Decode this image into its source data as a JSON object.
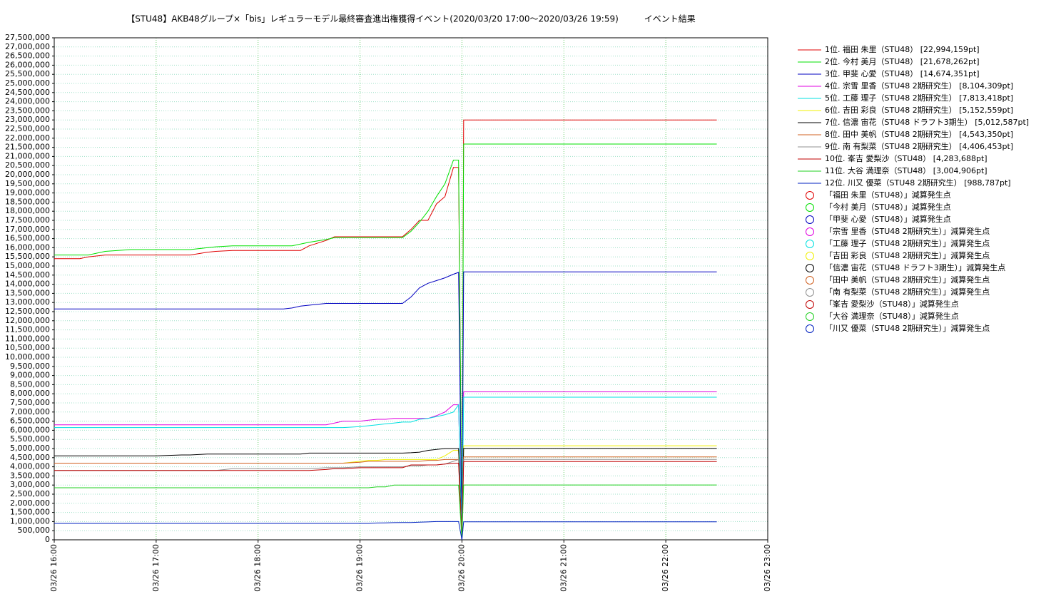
{
  "chart_data": {
    "type": "line",
    "title": "【STU48】AKB48グループ×「bis」レギュラーモデル最終審査進出権獲得イベント(2020/03/20 17:00〜2020/03/26 19:59)　　　イベント結果",
    "grid": true,
    "legend": "right",
    "x": [
      "03/26 16:00",
      "03/26 16:15",
      "03/26 16:20",
      "03/26 16:30",
      "03/26 16:45",
      "03/26 17:00",
      "03/26 17:15",
      "03/26 17:20",
      "03/26 17:30",
      "03/26 17:35",
      "03/26 17:45",
      "03/26 18:00",
      "03/26 18:15",
      "03/26 18:20",
      "03/26 18:25",
      "03/26 18:30",
      "03/26 18:40",
      "03/26 18:45",
      "03/26 18:50",
      "03/26 19:00",
      "03/26 19:05",
      "03/26 19:10",
      "03/26 19:15",
      "03/26 19:20",
      "03/26 19:25",
      "03/26 19:30",
      "03/26 19:35",
      "03/26 19:40",
      "03/26 19:45",
      "03/26 19:50",
      "03/26 19:55",
      "03/26 19:58",
      "03/26 20:00",
      "03/26 20:01",
      "03/26 22:30"
    ],
    "xlim": [
      "03/26 16:00",
      "03/26 23:00"
    ],
    "xticks": [
      "03/26 16:00",
      "03/26 17:00",
      "03/26 18:00",
      "03/26 19:00",
      "03/26 20:00",
      "03/26 21:00",
      "03/26 22:00",
      "03/26 23:00"
    ],
    "ylim": [
      0,
      27500000
    ],
    "yticks": [
      0,
      {
        "value": 500000,
        "label": "500,000"
      },
      {
        "value": 1000000,
        "label": "1,000,000"
      },
      {
        "value": 1500000,
        "label": "1,500,000"
      },
      {
        "value": 2000000,
        "label": "2,000,000"
      },
      {
        "value": 2500000,
        "label": "2,500,000"
      },
      {
        "value": 3000000,
        "label": "3,000,000"
      },
      {
        "value": 3500000,
        "label": "3,500,000"
      },
      {
        "value": 4000000,
        "label": "4,000,000"
      },
      {
        "value": 4500000,
        "label": "4,500,000"
      },
      {
        "value": 5000000,
        "label": "5,000,000"
      },
      {
        "value": 5500000,
        "label": "5,500,000"
      },
      {
        "value": 6000000,
        "label": "6,000,000"
      },
      {
        "value": 6500000,
        "label": "6,500,000"
      },
      {
        "value": 7000000,
        "label": "7,000,000"
      },
      {
        "value": 7500000,
        "label": "7,500,000"
      },
      {
        "value": 8000000,
        "label": "8,000,000"
      },
      {
        "value": 8500000,
        "label": "8,500,000"
      },
      {
        "value": 9000000,
        "label": "9,000,000"
      },
      {
        "value": 9500000,
        "label": "9,500,000"
      },
      {
        "value": 10000000,
        "label": "10,000,000"
      },
      {
        "value": 10500000,
        "label": "10,500,000"
      },
      {
        "value": 11000000,
        "label": "11,000,000"
      },
      {
        "value": 11500000,
        "label": "11,500,000"
      },
      {
        "value": 12000000,
        "label": "12,000,000"
      },
      {
        "value": 12500000,
        "label": "12,500,000"
      },
      {
        "value": 13000000,
        "label": "13,000,000"
      },
      {
        "value": 13500000,
        "label": "13,500,000"
      },
      {
        "value": 14000000,
        "label": "14,000,000"
      },
      {
        "value": 14500000,
        "label": "14,500,000"
      },
      {
        "value": 15000000,
        "label": "15,000,000"
      },
      {
        "value": 15500000,
        "label": "15,500,000"
      },
      {
        "value": 16000000,
        "label": "16,000,000"
      },
      {
        "value": 16500000,
        "label": "16,500,000"
      },
      {
        "value": 17000000,
        "label": "17,000,000"
      },
      {
        "value": 17500000,
        "label": "17,500,000"
      },
      {
        "value": 18000000,
        "label": "18,000,000"
      },
      {
        "value": 18500000,
        "label": "18,500,000"
      },
      {
        "value": 19000000,
        "label": "19,000,000"
      },
      {
        "value": 19500000,
        "label": "19,500,000"
      },
      {
        "value": 20000000,
        "label": "20,000,000"
      },
      {
        "value": 20500000,
        "label": "20,500,000"
      },
      {
        "value": 21000000,
        "label": "21,000,000"
      },
      {
        "value": 21500000,
        "label": "21,500,000"
      },
      {
        "value": 22000000,
        "label": "22,000,000"
      },
      {
        "value": 22500000,
        "label": "22,500,000"
      },
      {
        "value": 23000000,
        "label": "23,000,000"
      },
      {
        "value": 23500000,
        "label": "23,500,000"
      },
      {
        "value": 24000000,
        "label": "24,000,000"
      },
      {
        "value": 24500000,
        "label": "24,500,000"
      },
      {
        "value": 25000000,
        "label": "25,000,000"
      },
      {
        "value": 25500000,
        "label": "25,500,000"
      },
      {
        "value": 26000000,
        "label": "26,000,000"
      },
      {
        "value": 26500000,
        "label": "26,500,000"
      },
      {
        "value": 27000000,
        "label": "27,000,000"
      },
      {
        "value": 27500000,
        "label": "27,500,000"
      }
    ],
    "series": [
      {
        "name": "1位. 福田 朱里（STU48） [22,994,159pt]",
        "color": "#e00000",
        "values": [
          15400000,
          15400000,
          15500000,
          15600000,
          15600000,
          15600000,
          15600000,
          15600000,
          15750000,
          15800000,
          15850000,
          15850000,
          15850000,
          15850000,
          15850000,
          16100000,
          16400000,
          16600000,
          16600000,
          16600000,
          16600000,
          16600000,
          16600000,
          16600000,
          16600000,
          17000000,
          17500000,
          17500000,
          18400000,
          18800000,
          20400000,
          20400000,
          0,
          22994159,
          22994159
        ]
      },
      {
        "name": "2位. 今村 美月（STU48） [21,678,262pt]",
        "color": "#00e000",
        "values": [
          15600000,
          15600000,
          15600000,
          15800000,
          15900000,
          15900000,
          15900000,
          15900000,
          16000000,
          16050000,
          16100000,
          16100000,
          16100000,
          16100000,
          16200000,
          16300000,
          16450000,
          16550000,
          16550000,
          16550000,
          16550000,
          16550000,
          16550000,
          16550000,
          16550000,
          16900000,
          17400000,
          18000000,
          18800000,
          19500000,
          20800000,
          20800000,
          0,
          21678262,
          21678262
        ]
      },
      {
        "name": "3位. 甲斐 心愛（STU48） [14,674,351pt]",
        "color": "#0000c0",
        "values": [
          12650000,
          12650000,
          12650000,
          12650000,
          12650000,
          12650000,
          12650000,
          12650000,
          12650000,
          12650000,
          12650000,
          12650000,
          12650000,
          12700000,
          12800000,
          12850000,
          12950000,
          12950000,
          12950000,
          12950000,
          12950000,
          12950000,
          12950000,
          12950000,
          12950000,
          13300000,
          13800000,
          14050000,
          14200000,
          14350000,
          14550000,
          14650000,
          0,
          14674351,
          14674351
        ]
      },
      {
        "name": "4位. 宗雪 里香（STU48 2期研究生） [8,104,309pt]",
        "color": "#e000e0",
        "values": [
          6300000,
          6300000,
          6300000,
          6300000,
          6300000,
          6300000,
          6300000,
          6300000,
          6300000,
          6300000,
          6300000,
          6300000,
          6300000,
          6300000,
          6300000,
          6300000,
          6300000,
          6400000,
          6500000,
          6500000,
          6550000,
          6600000,
          6600000,
          6650000,
          6650000,
          6650000,
          6650000,
          6650000,
          6800000,
          7000000,
          7400000,
          7400000,
          0,
          8104309,
          8104309
        ]
      },
      {
        "name": "5位. 工藤 理子（STU48 2期研究生） [7,813,418pt]",
        "color": "#00e0e0",
        "values": [
          6150000,
          6150000,
          6150000,
          6150000,
          6150000,
          6150000,
          6150000,
          6150000,
          6150000,
          6150000,
          6150000,
          6150000,
          6150000,
          6150000,
          6150000,
          6150000,
          6150000,
          6150000,
          6150000,
          6200000,
          6250000,
          6300000,
          6350000,
          6400000,
          6450000,
          6450000,
          6600000,
          6650000,
          6750000,
          6850000,
          7000000,
          7400000,
          0,
          7813418,
          7813418
        ]
      },
      {
        "name": "6位. 吉田 彩良（STU48 2期研究生） [5,152,559pt]",
        "color": "#f0f000",
        "values": [
          4200000,
          4200000,
          4200000,
          4200000,
          4200000,
          4200000,
          4200000,
          4200000,
          4200000,
          4200000,
          4200000,
          4200000,
          4200000,
          4200000,
          4200000,
          4200000,
          4200000,
          4200000,
          4200000,
          4300000,
          4350000,
          4350000,
          4400000,
          4400000,
          4400000,
          4400000,
          4400000,
          4400000,
          4400000,
          4600000,
          4900000,
          4900000,
          0,
          5152559,
          5152559
        ]
      },
      {
        "name": "7位. 信濃 宙花（STU48 ドラフト3期生） [5,012,587pt]",
        "color": "#000000",
        "values": [
          4600000,
          4600000,
          4600000,
          4600000,
          4600000,
          4600000,
          4650000,
          4650000,
          4700000,
          4700000,
          4700000,
          4700000,
          4700000,
          4700000,
          4700000,
          4750000,
          4750000,
          4750000,
          4750000,
          4750000,
          4750000,
          4750000,
          4750000,
          4750000,
          4750000,
          4770000,
          4800000,
          4900000,
          4950000,
          5000000,
          5000000,
          5000000,
          0,
          5012587,
          5012587
        ]
      },
      {
        "name": "8位. 田中 美帆（STU48 2期研究生） [4,543,350pt]",
        "color": "#d06020",
        "values": [
          4200000,
          4200000,
          4200000,
          4200000,
          4200000,
          4200000,
          4200000,
          4200000,
          4200000,
          4200000,
          4200000,
          4200000,
          4200000,
          4200000,
          4200000,
          4200000,
          4200000,
          4200000,
          4200000,
          4250000,
          4300000,
          4300000,
          4300000,
          4300000,
          4300000,
          4300000,
          4300000,
          4350000,
          4350000,
          4400000,
          4400000,
          4400000,
          0,
          4543350,
          4543350
        ]
      },
      {
        "name": "9位. 南 有梨菜（STU48 2期研究生） [4,406,453pt]",
        "color": "#909090",
        "values": [
          3800000,
          3800000,
          3800000,
          3800000,
          3800000,
          3800000,
          3800000,
          3800000,
          3800000,
          3800000,
          3900000,
          3900000,
          3900000,
          3900000,
          3900000,
          3900000,
          3950000,
          3950000,
          3950000,
          4000000,
          4000000,
          4000000,
          4000000,
          4000000,
          4000000,
          4050000,
          4050000,
          4100000,
          4100000,
          4150000,
          4300000,
          4400000,
          0,
          4406453,
          4406453
        ]
      },
      {
        "name": "10位. 峯吉 愛梨沙（STU48） [4,283,688pt]",
        "color": "#c00000",
        "values": [
          3800000,
          3800000,
          3800000,
          3800000,
          3800000,
          3800000,
          3800000,
          3800000,
          3800000,
          3800000,
          3800000,
          3800000,
          3800000,
          3800000,
          3800000,
          3800000,
          3850000,
          3900000,
          3900000,
          3950000,
          3950000,
          3950000,
          3950000,
          3950000,
          3950000,
          4100000,
          4100000,
          4100000,
          4100000,
          4150000,
          4200000,
          4200000,
          0,
          4283688,
          4283688
        ]
      },
      {
        "name": "11位. 大谷 満理奈（STU48） [3,004,906pt]",
        "color": "#20d020",
        "values": [
          2850000,
          2850000,
          2850000,
          2850000,
          2850000,
          2850000,
          2850000,
          2850000,
          2850000,
          2850000,
          2850000,
          2850000,
          2850000,
          2850000,
          2850000,
          2850000,
          2850000,
          2850000,
          2850000,
          2850000,
          2850000,
          2900000,
          2900000,
          3000000,
          3000000,
          3000000,
          3000000,
          3000000,
          3000000,
          3000000,
          3000000,
          3000000,
          0,
          3004906,
          3004906
        ]
      },
      {
        "name": "12位. 川又 優菜（STU48 2期研究生） [988,787pt]",
        "color": "#0020c0",
        "values": [
          900000,
          900000,
          900000,
          900000,
          900000,
          900000,
          900000,
          900000,
          900000,
          900000,
          900000,
          900000,
          900000,
          900000,
          900000,
          900000,
          900000,
          900000,
          900000,
          900000,
          900000,
          920000,
          930000,
          940000,
          950000,
          950000,
          970000,
          980000,
          1000000,
          1000000,
          1000000,
          1000000,
          0,
          988787,
          988787
        ]
      }
    ],
    "legend_markers": [
      {
        "name": "「福田 朱里（STU48）」減算発生点",
        "color": "#e00000"
      },
      {
        "name": "「今村 美月（STU48）」減算発生点",
        "color": "#00e000"
      },
      {
        "name": "「甲斐 心愛（STU48）」減算発生点",
        "color": "#0000c0"
      },
      {
        "name": "「宗雪 里香（STU48 2期研究生）」減算発生点",
        "color": "#e000e0"
      },
      {
        "name": "「工藤 理子（STU48 2期研究生）」減算発生点",
        "color": "#00e0e0"
      },
      {
        "name": "「吉田 彩良（STU48 2期研究生）」減算発生点",
        "color": "#f0f000"
      },
      {
        "name": "「信濃 宙花（STU48 ドラフト3期生）」減算発生点",
        "color": "#000000"
      },
      {
        "name": "「田中 美帆（STU48 2期研究生）」減算発生点",
        "color": "#d06020"
      },
      {
        "name": "「南 有梨菜（STU48 2期研究生）」減算発生点",
        "color": "#909090"
      },
      {
        "name": "「峯吉 愛梨沙（STU48）」減算発生点",
        "color": "#c00000"
      },
      {
        "name": "「大谷 満理奈（STU48）」減算発生点",
        "color": "#20d020"
      },
      {
        "name": "「川又 優菜（STU48 2期研究生）」減算発生点",
        "color": "#0020c0"
      }
    ]
  }
}
